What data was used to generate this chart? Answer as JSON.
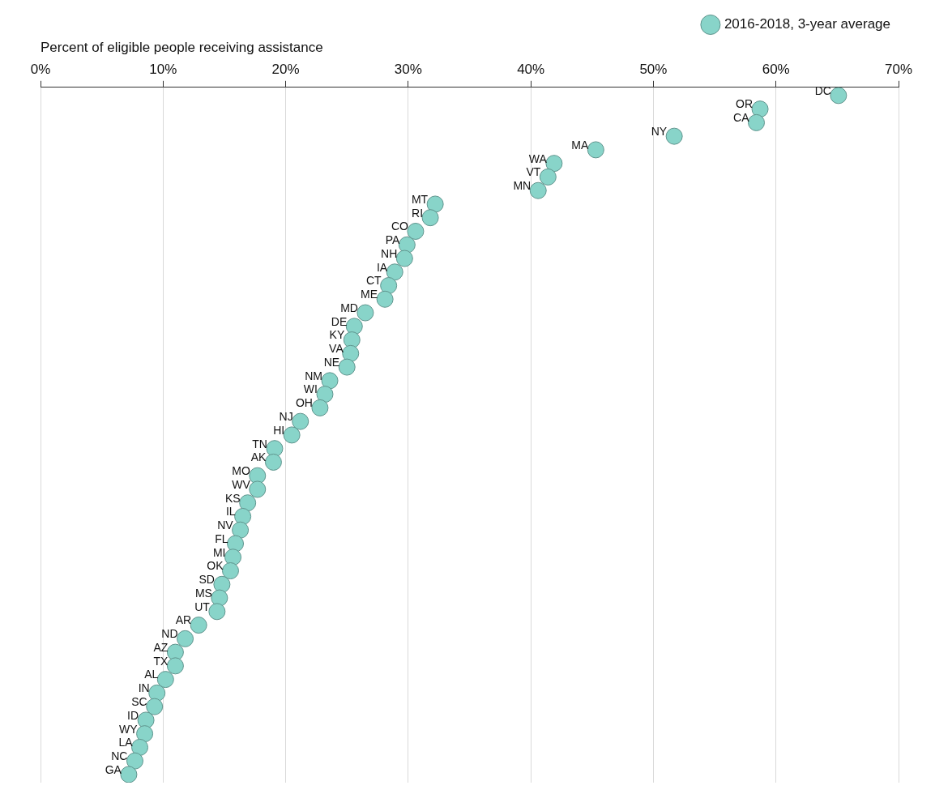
{
  "chart_data": {
    "type": "scatter",
    "orientation": "horizontal",
    "xlabel": "Percent of eligible people receiving assistance",
    "categories": [
      "DC",
      "OR",
      "CA",
      "NY",
      "MA",
      "WA",
      "VT",
      "MN",
      "MT",
      "RI",
      "CO",
      "PA",
      "NH",
      "IA",
      "CT",
      "ME",
      "MD",
      "DE",
      "KY",
      "VA",
      "NE",
      "NM",
      "WI",
      "OH",
      "NJ",
      "HI",
      "TN",
      "AK",
      "MO",
      "WV",
      "KS",
      "IL",
      "NV",
      "FL",
      "MI",
      "OK",
      "SD",
      "MS",
      "UT",
      "AR",
      "ND",
      "AZ",
      "TX",
      "AL",
      "IN",
      "SC",
      "ID",
      "WY",
      "LA",
      "NC",
      "GA"
    ],
    "series": [
      {
        "name": "2016-2018, 3-year average",
        "color": "#88d4c9",
        "values": [
          65.1,
          58.7,
          58.4,
          51.7,
          45.3,
          41.9,
          41.4,
          40.6,
          32.2,
          31.8,
          30.6,
          29.9,
          29.7,
          28.9,
          28.4,
          28.1,
          26.5,
          25.6,
          25.4,
          25.3,
          25.0,
          23.6,
          23.2,
          22.8,
          21.2,
          20.5,
          19.1,
          19.0,
          17.7,
          17.7,
          16.9,
          16.5,
          16.3,
          15.9,
          15.7,
          15.5,
          14.8,
          14.6,
          14.4,
          12.9,
          11.8,
          11.0,
          11.0,
          10.2,
          9.5,
          9.3,
          8.6,
          8.5,
          8.1,
          7.7,
          7.2
        ]
      }
    ],
    "xlim": [
      0,
      70
    ],
    "xticks": [
      {
        "value": 0,
        "label": "0%"
      },
      {
        "value": 10,
        "label": "10%"
      },
      {
        "value": 20,
        "label": "20%"
      },
      {
        "value": 30,
        "label": "30%"
      },
      {
        "value": 40,
        "label": "40%"
      },
      {
        "value": 50,
        "label": "50%"
      },
      {
        "value": 60,
        "label": "60%"
      },
      {
        "value": 70,
        "label": "70%"
      }
    ],
    "grid": "x",
    "legend": "top right",
    "marker": "circle",
    "tick_labels": "x"
  }
}
